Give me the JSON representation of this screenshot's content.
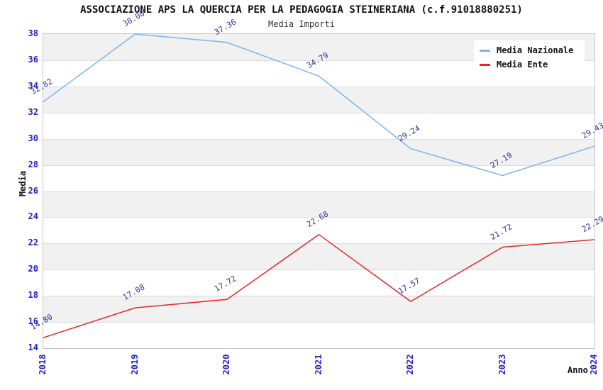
{
  "header": {
    "title": "ASSOCIAZIONE APS LA QUERCIA PER LA PEDAGOGIA STEINERIANA (c.f.91018880251)",
    "subtitle": "Media Importi"
  },
  "colors": {
    "media_nazionale": "#7cb5ec",
    "media_ente": "#e62626",
    "tick_label": "#2222cc",
    "data_label": "#333399",
    "band_gray": "#f1f1f1",
    "grid": "#dcdcdc"
  },
  "chart_data": {
    "type": "line",
    "title": "ASSOCIAZIONE APS LA QUERCIA PER LA PEDAGOGIA STEINERIANA (c.f.91018880251)",
    "subtitle": "Media Importi",
    "xlabel": "Anno",
    "ylabel": "Media",
    "x": [
      2018,
      2019,
      2020,
      2021,
      2022,
      2023,
      2024
    ],
    "series": [
      {
        "name": "Media Nazionale",
        "color": "#7cb5ec",
        "values": [
          32.82,
          38.0,
          37.36,
          34.79,
          29.24,
          27.19,
          29.43
        ],
        "labels": [
          "32.82",
          "38.00",
          "37.36",
          "34.79",
          "29.24",
          "27.19",
          "29.43"
        ]
      },
      {
        "name": "Media Ente",
        "color": "#e62626",
        "values": [
          14.8,
          17.08,
          17.72,
          22.68,
          17.57,
          21.72,
          22.29
        ],
        "labels": [
          "14.80",
          "17.08",
          "17.72",
          "22.68",
          "17.57",
          "21.72",
          "22.29"
        ]
      }
    ],
    "ylim": [
      14,
      38
    ],
    "ytick_step": 2,
    "yticks": [
      14,
      16,
      18,
      20,
      22,
      24,
      26,
      28,
      30,
      32,
      34,
      36,
      38
    ],
    "legend_position": "top-right",
    "grid": "horizontal-bands"
  }
}
